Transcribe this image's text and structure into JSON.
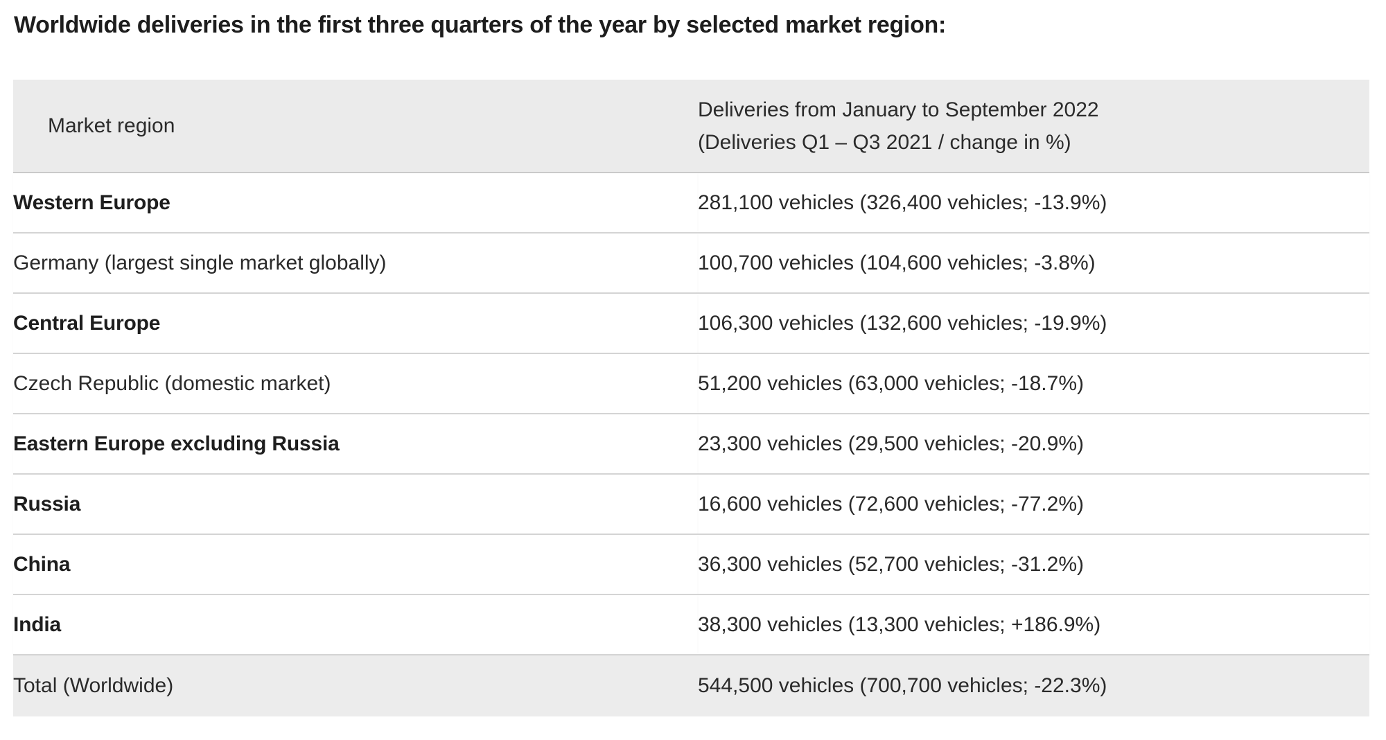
{
  "page": {
    "title": "Worldwide deliveries in the first three quarters of the year by selected market region:"
  },
  "table": {
    "header": {
      "market_region": "Market region",
      "deliveries_line1": "Deliveries from January to September 2022",
      "deliveries_line2": "(Deliveries Q1 – Q3 2021 / change in %)"
    },
    "rows": [
      {
        "region": "Western Europe",
        "deliveries": "281,100 vehicles (326,400 vehicles; -13.9%)",
        "bold": true,
        "total": false
      },
      {
        "region": "Germany (largest single market globally)",
        "deliveries": "100,700 vehicles (104,600 vehicles; -3.8%)",
        "bold": false,
        "total": false
      },
      {
        "region": "Central Europe",
        "deliveries": "106,300 vehicles (132,600 vehicles; -19.9%)",
        "bold": true,
        "total": false
      },
      {
        "region": "Czech Republic (domestic market)",
        "deliveries": "51,200 vehicles (63,000 vehicles; -18.7%)",
        "bold": false,
        "total": false
      },
      {
        "region": "Eastern Europe excluding Russia",
        "deliveries": "23,300 vehicles (29,500 vehicles; -20.9%)",
        "bold": true,
        "total": false
      },
      {
        "region": "Russia",
        "deliveries": "16,600 vehicles (72,600 vehicles; -77.2%)",
        "bold": true,
        "total": false
      },
      {
        "region": "China",
        "deliveries": "36,300 vehicles (52,700 vehicles; -31.2%)",
        "bold": true,
        "total": false
      },
      {
        "region": "India",
        "deliveries": "38,300 vehicles (13,300 vehicles; +186.9%)",
        "bold": true,
        "total": false
      },
      {
        "region": "Total (Worldwide)",
        "deliveries": "544,500 vehicles (700,700 vehicles; -22.3%)",
        "bold": false,
        "total": true
      }
    ],
    "colors": {
      "header_background": "#ebebeb",
      "total_row_background": "#ececec",
      "divider": "#d4d4d4",
      "title_text": "#1d1d1d",
      "body_text": "#2a2a2a"
    }
  }
}
